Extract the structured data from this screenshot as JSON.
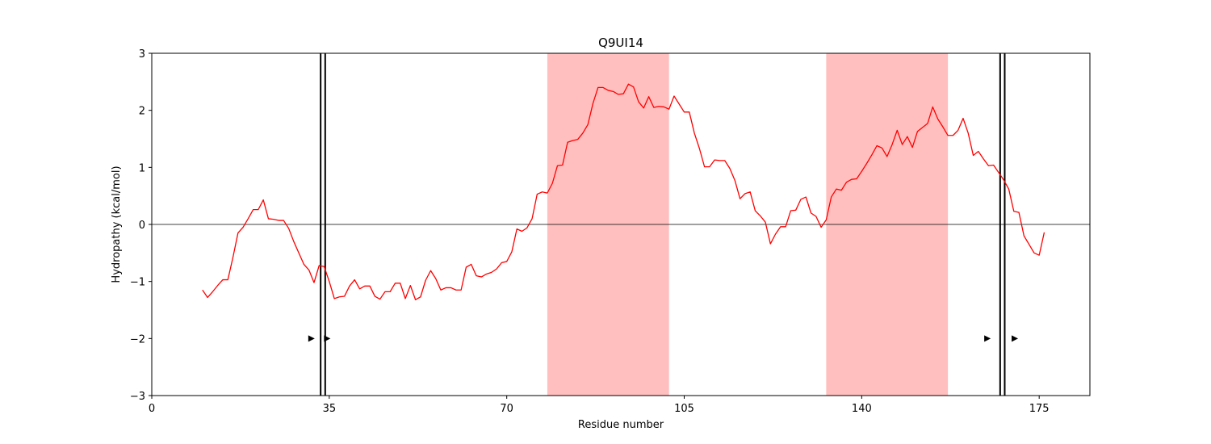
{
  "chart_data": {
    "type": "line",
    "title": "Q9UI14",
    "xlabel": "Residue number",
    "ylabel": "Hydropathy (kcal/mol)",
    "xlim": [
      0,
      185
    ],
    "ylim": [
      -3,
      3
    ],
    "xticks": [
      0,
      35,
      70,
      105,
      140,
      175
    ],
    "yticks": [
      -3,
      -2,
      -1,
      0,
      1,
      2,
      3
    ],
    "zero_line": true,
    "line_color": "#ff0000",
    "shade_color": "#ffbfbf",
    "shaded_regions": [
      [
        78,
        102
      ],
      [
        133,
        157
      ]
    ],
    "vertical_double_lines": [
      [
        33.3,
        34.2
      ],
      [
        167.3,
        168.2
      ]
    ],
    "arrow_markers": [
      {
        "x": 31.5,
        "y": -2
      },
      {
        "x": 34.6,
        "y": -2
      },
      {
        "x": 164.8,
        "y": -2
      },
      {
        "x": 170.2,
        "y": -2
      }
    ],
    "series": [
      {
        "name": "hydropathy",
        "x": [
          10,
          11,
          12,
          13,
          14,
          15,
          16,
          17,
          18,
          19,
          20,
          21,
          22,
          23,
          24,
          25,
          26,
          27,
          28,
          29,
          30,
          31,
          32,
          33,
          34,
          35,
          36,
          37,
          38,
          39,
          40,
          41,
          42,
          43,
          44,
          45,
          46,
          47,
          48,
          49,
          50,
          51,
          52,
          53,
          54,
          55,
          56,
          57,
          58,
          59,
          60,
          61,
          62,
          63,
          64,
          65,
          66,
          67,
          68,
          69,
          70,
          71,
          72,
          73,
          74,
          75,
          76,
          77,
          78,
          79,
          80,
          81,
          82,
          83,
          84,
          85,
          86,
          87,
          88,
          89,
          90,
          91,
          92,
          93,
          94,
          95,
          96,
          97,
          98,
          99,
          100,
          101,
          102,
          103,
          104,
          105,
          106,
          107,
          108,
          109,
          110,
          111,
          112,
          113,
          114,
          115,
          116,
          117,
          118,
          119,
          120,
          121,
          122,
          123,
          124,
          125,
          126,
          127,
          128,
          129,
          130,
          131,
          132,
          133,
          134,
          135,
          136,
          137,
          138,
          139,
          140,
          141,
          142,
          143,
          144,
          145,
          146,
          147,
          148,
          149,
          150,
          151,
          152,
          153,
          154,
          155,
          156,
          157,
          158,
          159,
          160,
          161,
          162,
          163,
          164,
          165,
          166,
          167,
          168,
          169,
          170,
          171,
          172,
          173,
          174,
          175,
          176
        ],
        "values": [
          -1.15,
          -1.28,
          -1.18,
          -1.07,
          -0.97,
          -0.97,
          -0.58,
          -0.15,
          -0.05,
          0.1,
          0.26,
          0.26,
          0.43,
          0.1,
          0.09,
          0.07,
          0.07,
          -0.07,
          -0.3,
          -0.5,
          -0.7,
          -0.8,
          -1.02,
          -0.72,
          -0.74,
          -1.0,
          -1.3,
          -1.27,
          -1.26,
          -1.08,
          -0.97,
          -1.13,
          -1.08,
          -1.08,
          -1.26,
          -1.31,
          -1.18,
          -1.18,
          -1.03,
          -1.03,
          -1.3,
          -1.07,
          -1.32,
          -1.27,
          -0.98,
          -0.81,
          -0.95,
          -1.15,
          -1.11,
          -1.11,
          -1.15,
          -1.15,
          -0.75,
          -0.7,
          -0.9,
          -0.92,
          -0.87,
          -0.84,
          -0.78,
          -0.67,
          -0.65,
          -0.48,
          -0.08,
          -0.12,
          -0.06,
          0.1,
          0.53,
          0.57,
          0.55,
          0.72,
          1.03,
          1.04,
          1.44,
          1.47,
          1.49,
          1.6,
          1.75,
          2.12,
          2.4,
          2.4,
          2.35,
          2.33,
          2.28,
          2.29,
          2.46,
          2.41,
          2.15,
          2.04,
          2.24,
          2.05,
          2.07,
          2.06,
          2.02,
          2.25,
          2.11,
          1.97,
          1.97,
          1.6,
          1.33,
          1.01,
          1.01,
          1.13,
          1.12,
          1.12,
          0.98,
          0.77,
          0.45,
          0.54,
          0.57,
          0.24,
          0.15,
          0.04,
          -0.34,
          -0.17,
          -0.04,
          -0.04,
          0.24,
          0.25,
          0.44,
          0.48,
          0.2,
          0.14,
          -0.05,
          0.08,
          0.48,
          0.62,
          0.6,
          0.74,
          0.79,
          0.8,
          0.93,
          1.07,
          1.22,
          1.38,
          1.34,
          1.19,
          1.4,
          1.65,
          1.4,
          1.54,
          1.35,
          1.63,
          1.7,
          1.77,
          2.06,
          1.85,
          1.71,
          1.56,
          1.56,
          1.65,
          1.86,
          1.6,
          1.21,
          1.28,
          1.15,
          1.03,
          1.04,
          0.91,
          0.78,
          0.62,
          0.23,
          0.21,
          -0.2,
          -0.35,
          -0.5,
          -0.54,
          -0.14
        ]
      }
    ]
  }
}
